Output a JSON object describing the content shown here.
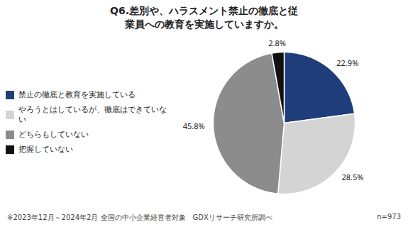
{
  "chart_data": {
    "type": "pie",
    "title": "Q6.差別や、ハラスメント禁止の徹底と従\n業員への教育を実施していますか。",
    "categories": [
      "禁止の徹底と教育を実施している",
      "やろうとはしているが、徹底はできていない",
      "どちらもしていない",
      "把握していない"
    ],
    "values": [
      22.9,
      28.5,
      45.8,
      2.8
    ],
    "value_labels": [
      "22.9%",
      "28.5%",
      "45.8%",
      "2.8%"
    ],
    "colors": [
      "#1f3d7a",
      "#d4d4d4",
      "#8c8c8c",
      "#111111"
    ],
    "data_labels": true,
    "legend": "left",
    "annotations": [
      "※2023年12月～2024年2月 全国の中小企業経営者対象　GDXリサーチ研究所調べ",
      "n=973"
    ]
  }
}
